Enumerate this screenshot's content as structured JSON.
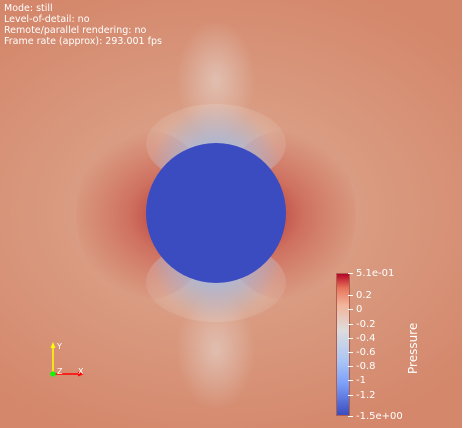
{
  "info_overlay": {
    "mode": "Mode: still",
    "level_of_detail": "Level-of-detail: no",
    "remote_rendering": "Remote/parallel rendering: no",
    "frame_rate": "Frame rate (approx): 293.001 fps"
  },
  "scalar_bar": {
    "title": "Pressure",
    "max_label": "5.1e-01",
    "min_label": "-1.5e+00",
    "tick_labels": [
      "0.2",
      "0",
      "-0.2",
      "-0.4",
      "-0.6",
      "-0.8",
      "-1",
      "-1.2"
    ],
    "range": [
      -1.5,
      0.51
    ],
    "ticks": [
      0.2,
      0,
      -0.2,
      -0.4,
      -0.6,
      -0.8,
      -1,
      -1.2
    ],
    "color_high": "#b40426",
    "color_mid": "#dddddd",
    "color_low": "#3b4cc0"
  },
  "axes_widget": {
    "x_label": "X",
    "y_label": "Y",
    "z_label": "Z",
    "x_color": "#ff0000",
    "y_color": "#ffff00",
    "z_color": "#00ff00"
  },
  "colors": {
    "background_field": "#d4876b",
    "cylinder": "#3b4cc0"
  }
}
